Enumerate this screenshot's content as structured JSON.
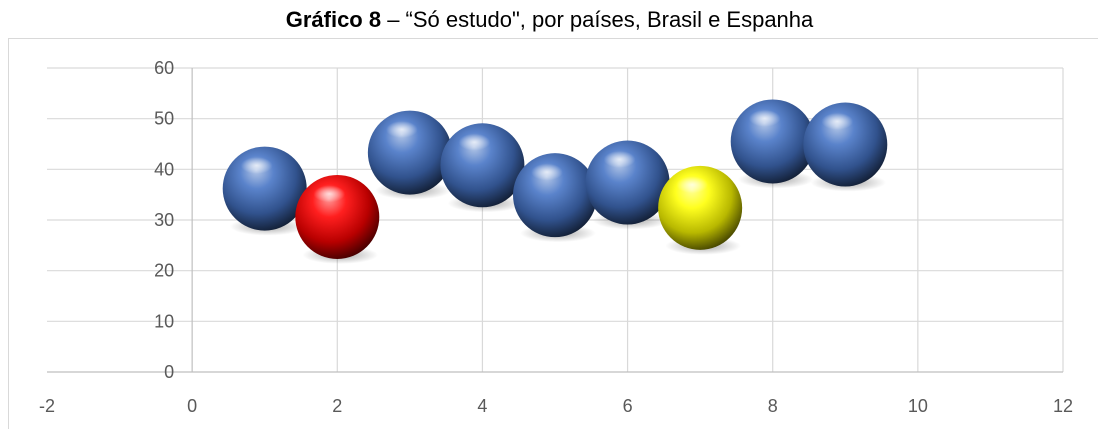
{
  "chart_data": {
    "type": "scatter",
    "title_bold": "Gráfico 8",
    "title_rest": " – “Só estudo\", por países, Brasil e Espanha",
    "xlabel": "",
    "ylabel": "",
    "xlim": [
      -2,
      12
    ],
    "ylim": [
      0,
      60
    ],
    "xticks": [
      -2,
      0,
      2,
      4,
      6,
      8,
      10,
      12
    ],
    "yticks": [
      0,
      10,
      20,
      30,
      40,
      50,
      60
    ],
    "grid": true,
    "legend": "none",
    "bubble_style": "3d-sphere",
    "points": [
      {
        "x": 1,
        "y": 36.2,
        "color": "#4472c4"
      },
      {
        "x": 2,
        "y": 30.6,
        "color": "#ff0000"
      },
      {
        "x": 3,
        "y": 43.3,
        "color": "#4472c4"
      },
      {
        "x": 4,
        "y": 40.8,
        "color": "#4472c4"
      },
      {
        "x": 5,
        "y": 34.9,
        "color": "#4472c4"
      },
      {
        "x": 6,
        "y": 37.4,
        "color": "#4472c4"
      },
      {
        "x": 7,
        "y": 32.4,
        "color": "#ffff00"
      },
      {
        "x": 8,
        "y": 45.5,
        "color": "#4472c4"
      },
      {
        "x": 9,
        "y": 44.9,
        "color": "#4472c4"
      }
    ]
  }
}
